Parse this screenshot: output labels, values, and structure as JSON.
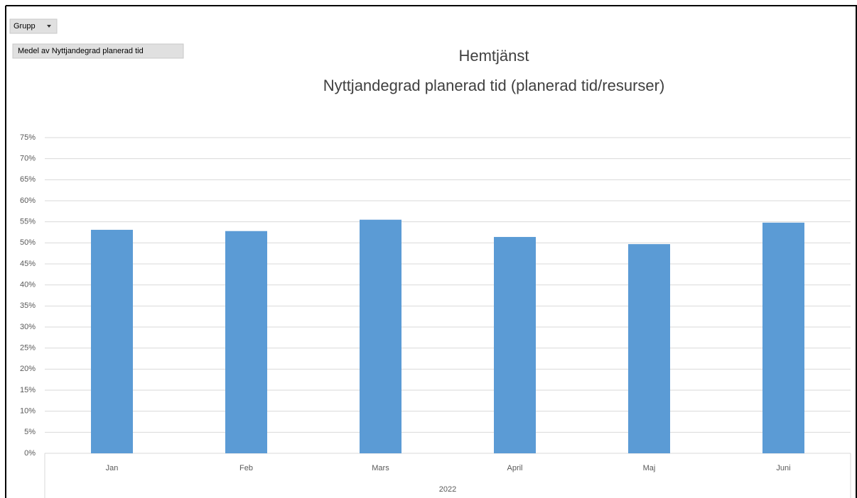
{
  "chart_data": {
    "type": "bar",
    "buttons": [
      "Grupp",
      "Medel av Nyttjandegrad planerad tid"
    ],
    "title": [
      "Hemtjänst",
      "Nyttjandegrad planerad tid (planerad tid/resurser)"
    ],
    "categories": [
      "Jan",
      "Feb",
      "Mars",
      "April",
      "Maj",
      "Juni"
    ],
    "group_label": "2022",
    "values": [
      53.1,
      52.8,
      55.5,
      51.4,
      49.7,
      54.8
    ],
    "color": "#5b9bd5",
    "ylim": [
      0,
      75
    ],
    "yticks": [
      {
        "value": 0,
        "label": "0%"
      },
      {
        "value": 5,
        "label": "5%"
      },
      {
        "value": 10,
        "label": "10%"
      },
      {
        "value": 15,
        "label": "15%"
      },
      {
        "value": 20,
        "label": "20%"
      },
      {
        "value": 25,
        "label": "25%"
      },
      {
        "value": 30,
        "label": "30%"
      },
      {
        "value": 35,
        "label": "35%"
      },
      {
        "value": 40,
        "label": "40%"
      },
      {
        "value": 45,
        "label": "45%"
      },
      {
        "value": 50,
        "label": "50%"
      },
      {
        "value": 55,
        "label": "55%"
      },
      {
        "value": 60,
        "label": "60%"
      },
      {
        "value": 65,
        "label": "65%"
      },
      {
        "value": 70,
        "label": "70%"
      },
      {
        "value": 75,
        "label": "75%"
      }
    ],
    "grid": true
  }
}
